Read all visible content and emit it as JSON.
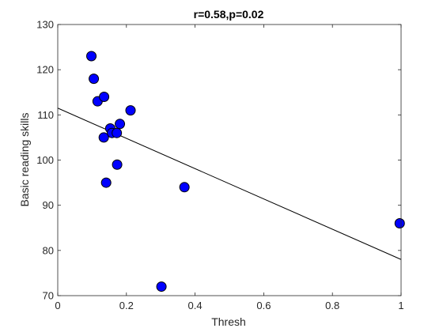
{
  "chart_data": {
    "type": "scatter",
    "title": "r=0.58,p=0.02",
    "xlabel": "Thresh",
    "ylabel": "Basic reading skills",
    "xlim": [
      0,
      1
    ],
    "ylim": [
      70,
      130
    ],
    "x_ticks": [
      "0",
      "0.2",
      "0.4",
      "0.6",
      "0.8",
      "1"
    ],
    "y_ticks": [
      "70",
      "80",
      "90",
      "100",
      "110",
      "120",
      "130"
    ],
    "grid": false,
    "series": [
      {
        "points": [
          {
            "x": 0.098,
            "y": 123
          },
          {
            "x": 0.105,
            "y": 118
          },
          {
            "x": 0.116,
            "y": 113
          },
          {
            "x": 0.135,
            "y": 114
          },
          {
            "x": 0.212,
            "y": 111
          },
          {
            "x": 0.181,
            "y": 108
          },
          {
            "x": 0.153,
            "y": 107
          },
          {
            "x": 0.158,
            "y": 106
          },
          {
            "x": 0.172,
            "y": 106
          },
          {
            "x": 0.134,
            "y": 105
          },
          {
            "x": 0.173,
            "y": 99
          },
          {
            "x": 0.141,
            "y": 95
          },
          {
            "x": 0.369,
            "y": 94
          },
          {
            "x": 0.996,
            "y": 86
          },
          {
            "x": 0.302,
            "y": 72
          }
        ]
      }
    ],
    "fit_line": {
      "x": [
        0,
        1
      ],
      "y": [
        111.5,
        78
      ]
    },
    "colors": {
      "marker_fill": "#0000ff",
      "marker_edge": "#000000",
      "line": "#000000",
      "axes": "#262626"
    }
  }
}
